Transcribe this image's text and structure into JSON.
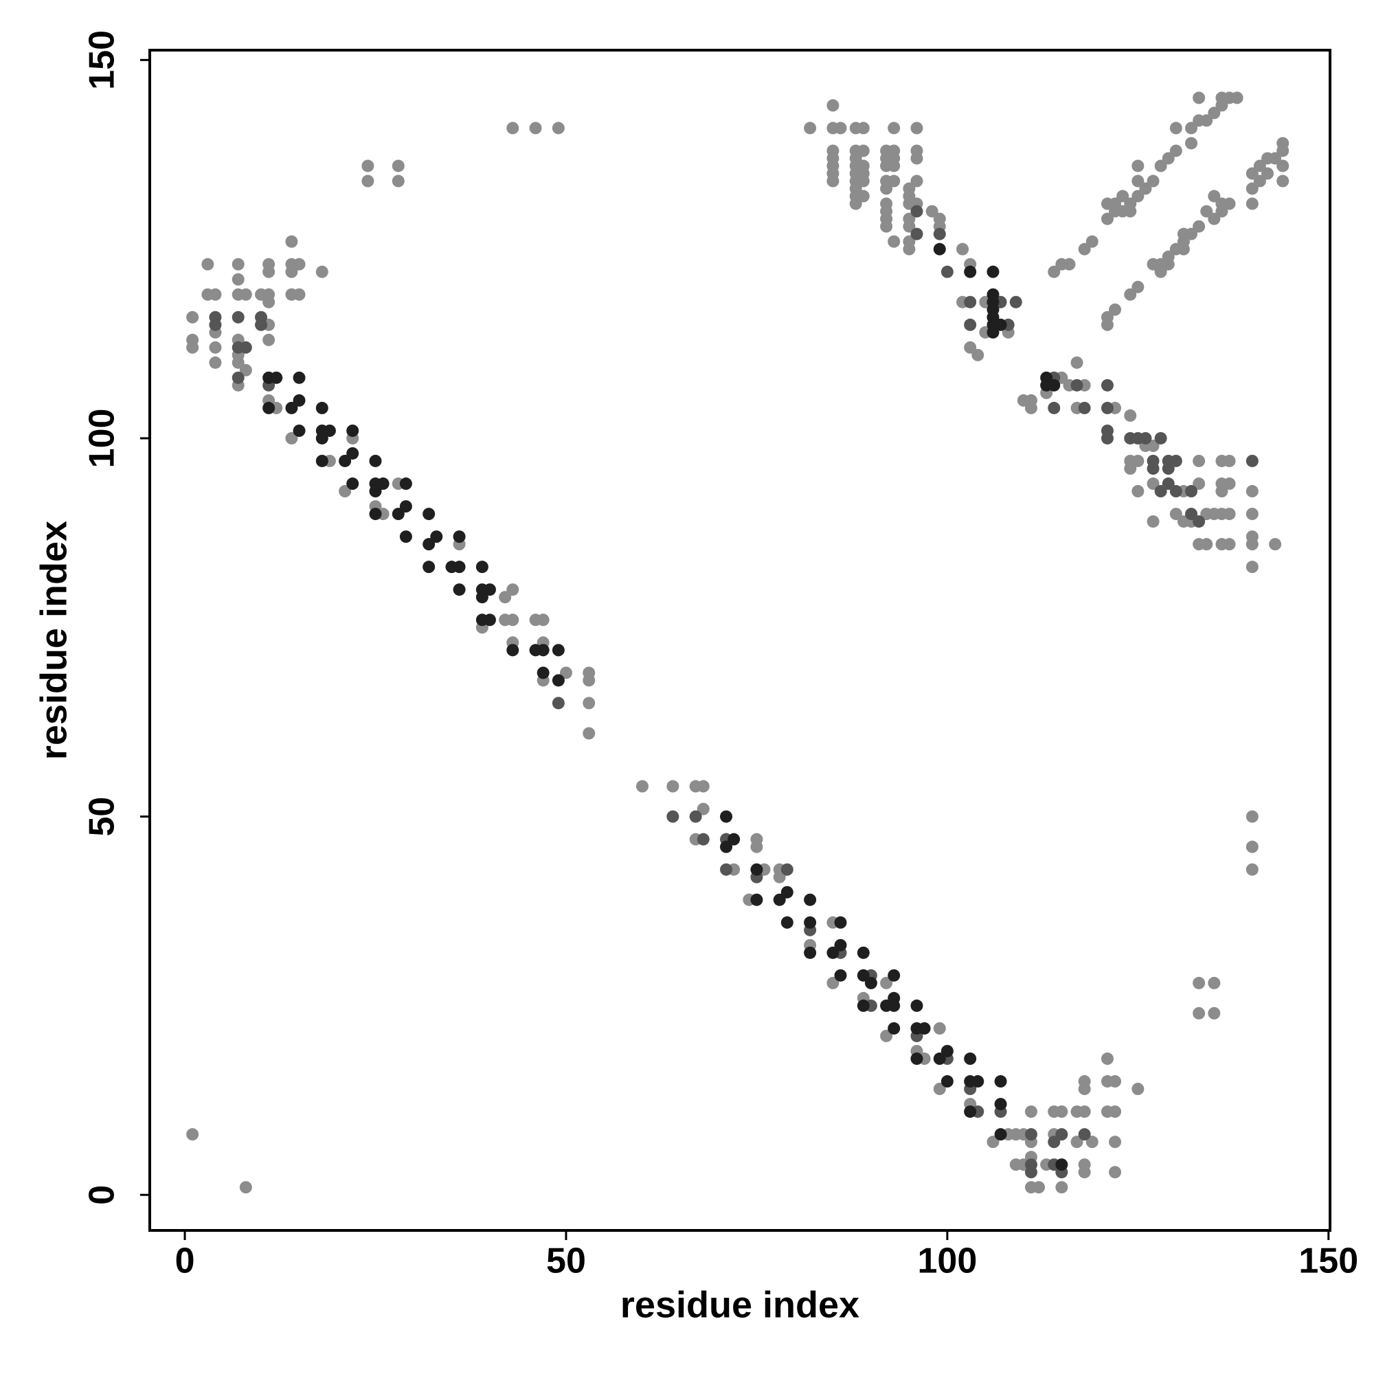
{
  "chart_data": {
    "type": "scatter",
    "xlabel": "residue index",
    "ylabel": "residue index",
    "xlim": [
      -4.6,
      150.2
    ],
    "ylim": [
      -4.7,
      151.3
    ],
    "xticks": [
      0,
      50,
      100,
      150
    ],
    "yticks": [
      0,
      50,
      100,
      150
    ],
    "series": [
      {
        "color": "#8c8c8c",
        "x": [
          1,
          8,
          43,
          46,
          49,
          24,
          24,
          28,
          28,
          140,
          140,
          140,
          133,
          135,
          133,
          135,
          1,
          1,
          1,
          3,
          3,
          4,
          4,
          4,
          4,
          7,
          7,
          7,
          8,
          10,
          11,
          7,
          7,
          7,
          8,
          7,
          11,
          11,
          14,
          14,
          15,
          14,
          15,
          14,
          18,
          11,
          11,
          11,
          11,
          12,
          14,
          19,
          22,
          21,
          28,
          25,
          26,
          42,
          43,
          42,
          43,
          46,
          47,
          43,
          47,
          47,
          50,
          53,
          53,
          53,
          53,
          36,
          39,
          60,
          64,
          67,
          68,
          68,
          67,
          75,
          75,
          72,
          76,
          78,
          78,
          74,
          85,
          82,
          85,
          89,
          92,
          92,
          96,
          97,
          99,
          99,
          103,
          106,
          108,
          109,
          110,
          111,
          111,
          111,
          109,
          110,
          111,
          112,
          113,
          114,
          115,
          114,
          115,
          118,
          118,
          118,
          117,
          119,
          117,
          118,
          118,
          121,
          121,
          122,
          121,
          122,
          122,
          122,
          125,
          82,
          85,
          85,
          86,
          88,
          89,
          93,
          96,
          85,
          85,
          85,
          85,
          85,
          88,
          88,
          88,
          88,
          88,
          88,
          88,
          88,
          89,
          89,
          89,
          89,
          89,
          92,
          92,
          92,
          92,
          92,
          92,
          92,
          93,
          93,
          93,
          93,
          92,
          92,
          93,
          95,
          95,
          95,
          95,
          95,
          95,
          95,
          96,
          96,
          96,
          96,
          98,
          99,
          99,
          102,
          103,
          102,
          105,
          103,
          104,
          105,
          108,
          113,
          110,
          111,
          111,
          115,
          117,
          116,
          117,
          118,
          122,
          124,
          126,
          127,
          124,
          125,
          124,
          133,
          136,
          137,
          125,
          127,
          131,
          133,
          136,
          137,
          136,
          140,
          130,
          131,
          134,
          135,
          136,
          137,
          140,
          127,
          132,
          133,
          134,
          136,
          137,
          140,
          140,
          143,
          140,
          114,
          115,
          116,
          118,
          119,
          121,
          122,
          122,
          121,
          123,
          124,
          125,
          125,
          126,
          127,
          128,
          129,
          130,
          130,
          132,
          132,
          133,
          133,
          134,
          135,
          136,
          136,
          137,
          138,
          125,
          123,
          124,
          121,
          121,
          122,
          124,
          125,
          128,
          128,
          129,
          130,
          131,
          132,
          133,
          129,
          131,
          135,
          136,
          137,
          136,
          140,
          140,
          140,
          141,
          142,
          143,
          144,
          144,
          144,
          144,
          141,
          142,
          131,
          135,
          134,
          127
        ],
        "values": [
          8,
          1,
          141,
          141,
          141,
          136,
          134,
          136,
          134,
          50,
          46,
          43,
          28,
          28,
          24,
          24,
          116,
          113,
          112,
          123,
          119,
          119,
          114,
          112,
          110,
          123,
          121,
          119,
          119,
          119,
          119,
          113,
          111,
          110,
          109,
          107,
          123,
          122,
          126,
          123,
          123,
          122,
          119,
          119,
          122,
          118,
          115,
          113,
          105,
          104,
          100,
          97,
          100,
          93,
          94,
          91,
          90,
          79,
          80,
          76,
          76,
          76,
          76,
          73,
          73,
          68,
          69,
          69,
          68,
          65,
          61,
          86,
          75,
          54,
          54,
          54,
          54,
          51,
          47,
          47,
          46,
          43,
          43,
          43,
          42,
          39,
          36,
          33,
          28,
          26,
          28,
          21,
          19,
          18,
          22,
          14,
          12,
          7,
          8,
          8,
          8,
          11,
          7,
          5,
          4,
          4,
          1,
          1,
          4,
          11,
          11,
          8,
          1,
          15,
          14,
          11,
          11,
          7,
          7,
          4,
          3,
          18,
          15,
          15,
          11,
          11,
          7,
          3,
          14,
          141,
          144,
          141,
          141,
          141,
          141,
          141,
          141,
          138,
          137,
          136,
          135,
          134,
          138,
          137,
          136,
          135,
          134,
          133,
          132,
          131,
          138,
          136,
          135,
          134,
          132,
          138,
          137,
          136,
          134,
          133,
          131,
          130,
          138,
          137,
          136,
          134,
          129,
          128,
          126,
          133,
          132,
          131,
          129,
          128,
          126,
          125,
          138,
          137,
          134,
          131,
          130,
          129,
          128,
          125,
          123,
          118,
          118,
          112,
          111,
          114,
          114,
          106,
          105,
          105,
          104,
          108,
          110,
          107,
          104,
          107,
          104,
          103,
          99,
          99,
          97,
          97,
          96,
          97,
          97,
          97,
          93,
          94,
          93,
          94,
          94,
          94,
          93,
          93,
          90,
          89,
          90,
          90,
          90,
          90,
          90,
          89,
          89,
          86,
          86,
          86,
          86,
          87,
          86,
          86,
          83,
          122,
          123,
          123,
          125,
          126,
          129,
          130,
          131,
          131,
          130,
          131,
          132,
          136,
          133,
          134,
          136,
          137,
          138,
          141,
          141,
          139,
          142,
          145,
          142,
          143,
          145,
          144,
          145,
          145,
          134,
          132,
          130,
          115,
          116,
          117,
          119,
          120,
          123,
          122,
          124,
          125,
          126,
          127,
          128,
          123,
          125,
          129,
          130,
          131,
          131,
          131,
          133,
          135,
          134,
          135,
          137,
          138,
          139,
          136,
          134,
          136,
          137,
          127,
          132,
          130,
          123
        ]
      },
      {
        "color": "#555555",
        "x": [
          4,
          4,
          7,
          8,
          10,
          10,
          7,
          11,
          7,
          49,
          64,
          67,
          68,
          71,
          71,
          79,
          75,
          82,
          86,
          90,
          90,
          96,
          100,
          103,
          104,
          107,
          111,
          111,
          111,
          115,
          114,
          114,
          115,
          118,
          96,
          96,
          99,
          100,
          103,
          103,
          107,
          108,
          109,
          114,
          114,
          117,
          118,
          121,
          121,
          121,
          121,
          124,
          125,
          126,
          128,
          127,
          129,
          130,
          140,
          127,
          129,
          128,
          129,
          130,
          132,
          132,
          133
        ],
        "values": [
          116,
          115,
          116,
          112,
          116,
          115,
          108,
          107,
          112,
          65,
          50,
          50,
          47,
          47,
          43,
          43,
          42,
          35,
          32,
          29,
          25,
          21,
          18,
          14,
          11,
          11,
          8,
          4,
          3,
          8,
          7,
          4,
          3,
          8,
          130,
          127,
          127,
          122,
          118,
          115,
          118,
          115,
          118,
          108,
          104,
          107,
          104,
          107,
          104,
          101,
          100,
          100,
          100,
          100,
          100,
          97,
          97,
          97,
          97,
          96,
          96,
          93,
          94,
          93,
          93,
          90,
          89
        ]
      },
      {
        "color": "#1f1f1f",
        "x": [
          11,
          12,
          15,
          11,
          14,
          15,
          18,
          15,
          18,
          19,
          22,
          18,
          18,
          21,
          22,
          22,
          25,
          25,
          26,
          25,
          29,
          25,
          29,
          28,
          32,
          29,
          32,
          33,
          36,
          32,
          35,
          36,
          39,
          36,
          39,
          40,
          39,
          39,
          40,
          43,
          46,
          47,
          49,
          47,
          49,
          71,
          72,
          71,
          75,
          75,
          78,
          79,
          79,
          82,
          82,
          86,
          82,
          85,
          86,
          89,
          86,
          89,
          90,
          93,
          89,
          92,
          93,
          93,
          93,
          96,
          96,
          97,
          96,
          99,
          100,
          103,
          100,
          103,
          104,
          107,
          103,
          107,
          107,
          115,
          99,
          103,
          106,
          106,
          106,
          106,
          106,
          106,
          106,
          107,
          113,
          113,
          114
        ],
        "values": [
          108,
          108,
          108,
          104,
          104,
          105,
          104,
          101,
          101,
          101,
          101,
          100,
          97,
          97,
          98,
          94,
          97,
          94,
          94,
          93,
          94,
          90,
          91,
          90,
          90,
          87,
          86,
          87,
          87,
          83,
          83,
          83,
          83,
          80,
          80,
          80,
          79,
          76,
          76,
          72,
          72,
          72,
          72,
          69,
          68,
          50,
          47,
          46,
          43,
          39,
          39,
          40,
          36,
          39,
          36,
          36,
          32,
          32,
          33,
          32,
          29,
          29,
          28,
          29,
          25,
          25,
          26,
          25,
          22,
          25,
          22,
          22,
          18,
          18,
          19,
          18,
          15,
          15,
          15,
          15,
          11,
          12,
          8,
          4,
          125,
          122,
          122,
          119,
          118,
          117,
          116,
          115,
          114,
          115,
          108,
          107,
          107
        ]
      }
    ]
  }
}
